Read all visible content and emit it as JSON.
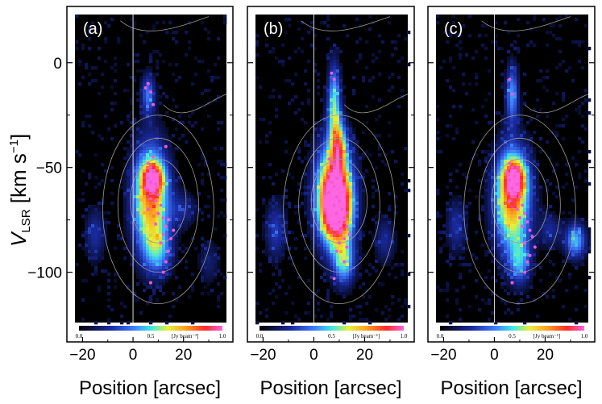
{
  "figure": {
    "ylabel_main": "V",
    "ylabel_sub": "LSR",
    "ylabel_unit": " [km s",
    "ylabel_exp": "−1",
    "ylabel_close": "]",
    "xlabel": "Position [arcsec]",
    "yticks": [
      "0",
      "−50",
      "−100"
    ],
    "xticks": [
      "−20",
      "0",
      "20"
    ]
  },
  "chart_data": [
    {
      "type": "heatmap",
      "panel_label": "(a)",
      "xlabel": "Position [arcsec]",
      "ylabel": "V_LSR [km s^-1]",
      "xlim": [
        -23,
        37
      ],
      "ylim": [
        -124,
        23
      ],
      "colorbar": {
        "min": 0.0,
        "max": 1.0,
        "ticks": [
          "0.0",
          "0.5",
          "1.0"
        ],
        "unit": "[Jy beam⁻¹]"
      },
      "blobs": [
        {
          "x": 7,
          "y": -65,
          "rx": 5,
          "ry": 18,
          "peak": 0.78
        },
        {
          "x": 8,
          "y": -55,
          "rx": 3,
          "ry": 5,
          "peak": 0.55
        },
        {
          "x": 6,
          "y": -15,
          "rx": 2,
          "ry": 7,
          "peak": 0.35
        },
        {
          "x": 10,
          "y": -90,
          "rx": 4,
          "ry": 8,
          "peak": 0.3
        },
        {
          "x": -15,
          "y": -82,
          "rx": 3,
          "ry": 9,
          "peak": 0.22
        },
        {
          "x": 20,
          "y": -70,
          "rx": 4,
          "ry": 6,
          "peak": 0.18
        },
        {
          "x": 30,
          "y": -95,
          "rx": 3,
          "ry": 8,
          "peak": 0.15
        }
      ],
      "points": [
        [
          6,
          -10
        ],
        [
          5,
          -12
        ],
        [
          7,
          -14
        ],
        [
          8,
          -20
        ],
        [
          6,
          -48
        ],
        [
          7,
          -50
        ],
        [
          8,
          -52
        ],
        [
          6,
          -55
        ],
        [
          7,
          -57
        ],
        [
          9,
          -58
        ],
        [
          5,
          -60
        ],
        [
          8,
          -62
        ],
        [
          10,
          -63
        ],
        [
          7,
          -65
        ],
        [
          9,
          -66
        ],
        [
          11,
          -68
        ],
        [
          6,
          -70
        ],
        [
          10,
          -72
        ],
        [
          12,
          -74
        ],
        [
          14,
          -75
        ],
        [
          9,
          -77
        ],
        [
          13,
          -78
        ],
        [
          16,
          -80
        ],
        [
          12,
          -82
        ],
        [
          15,
          -84
        ],
        [
          11,
          -86
        ],
        [
          14,
          -90
        ],
        [
          13,
          -95
        ],
        [
          12,
          -100
        ],
        [
          7,
          -105
        ],
        [
          13,
          -40
        ],
        [
          8,
          -45
        ]
      ]
    },
    {
      "type": "heatmap",
      "panel_label": "(b)",
      "xlabel": "Position [arcsec]",
      "ylabel": "V_LSR [km s^-1]",
      "xlim": [
        -23,
        37
      ],
      "ylim": [
        -124,
        23
      ],
      "colorbar": {
        "min": 0.0,
        "max": 1.0,
        "ticks": [
          "0.0",
          "0.5",
          "1.0"
        ],
        "unit": "[Jy beam⁻¹]"
      },
      "blobs": [
        {
          "x": 8,
          "y": -62,
          "rx": 5,
          "ry": 17,
          "peak": 0.92
        },
        {
          "x": 9,
          "y": -70,
          "rx": 4,
          "ry": 10,
          "peak": 0.7
        },
        {
          "x": 8,
          "y": -20,
          "rx": 1.8,
          "ry": 14,
          "peak": 0.5
        },
        {
          "x": 10,
          "y": -40,
          "rx": 2,
          "ry": 8,
          "peak": 0.45
        },
        {
          "x": 12,
          "y": -95,
          "rx": 3,
          "ry": 8,
          "peak": 0.45
        },
        {
          "x": -15,
          "y": -80,
          "rx": 3,
          "ry": 10,
          "peak": 0.25
        },
        {
          "x": 28,
          "y": -85,
          "rx": 3,
          "ry": 8,
          "peak": 0.2
        }
      ],
      "points": [
        [
          7,
          -5
        ],
        [
          8,
          -8
        ],
        [
          6,
          -46
        ],
        [
          7,
          -48
        ],
        [
          8,
          -50
        ],
        [
          6,
          -53
        ],
        [
          9,
          -55
        ],
        [
          7,
          -57
        ],
        [
          8,
          -59
        ],
        [
          6,
          -62
        ],
        [
          9,
          -64
        ],
        [
          10,
          -66
        ],
        [
          8,
          -68
        ],
        [
          11,
          -70
        ],
        [
          9,
          -72
        ],
        [
          12,
          -74
        ],
        [
          10,
          -76
        ],
        [
          13,
          -78
        ],
        [
          11,
          -80
        ],
        [
          14,
          -82
        ],
        [
          12,
          -84
        ],
        [
          10,
          -86
        ],
        [
          13,
          -88
        ],
        [
          9,
          -90
        ],
        [
          12,
          -95
        ],
        [
          8,
          -103
        ]
      ]
    },
    {
      "type": "heatmap",
      "panel_label": "(c)",
      "xlabel": "Position [arcsec]",
      "ylabel": "V_LSR [km s^-1]",
      "xlim": [
        -23,
        37
      ],
      "ylim": [
        -124,
        23
      ],
      "colorbar": {
        "min": 0.0,
        "max": 1.0,
        "ticks": [
          "0.0",
          "0.5",
          "1.0"
        ],
        "unit": "[Jy beam⁻¹]"
      },
      "blobs": [
        {
          "x": 7,
          "y": -65,
          "rx": 5,
          "ry": 17,
          "peak": 0.8
        },
        {
          "x": 8,
          "y": -55,
          "rx": 3,
          "ry": 6,
          "peak": 0.55
        },
        {
          "x": 7,
          "y": -15,
          "rx": 1.8,
          "ry": 10,
          "peak": 0.4
        },
        {
          "x": 10,
          "y": -95,
          "rx": 3,
          "ry": 8,
          "peak": 0.35
        },
        {
          "x": 32,
          "y": -85,
          "rx": 3,
          "ry": 6,
          "peak": 0.45
        },
        {
          "x": -15,
          "y": -78,
          "rx": 3,
          "ry": 9,
          "peak": 0.22
        },
        {
          "x": 22,
          "y": -80,
          "rx": 3,
          "ry": 6,
          "peak": 0.2
        }
      ],
      "points": [
        [
          6,
          -8
        ],
        [
          7,
          -15
        ],
        [
          6,
          -48
        ],
        [
          7,
          -50
        ],
        [
          5,
          -52
        ],
        [
          8,
          -54
        ],
        [
          6,
          -56
        ],
        [
          9,
          -58
        ],
        [
          7,
          -60
        ],
        [
          8,
          -62
        ],
        [
          10,
          -64
        ],
        [
          6,
          -66
        ],
        [
          11,
          -68
        ],
        [
          9,
          -70
        ],
        [
          12,
          -72
        ],
        [
          10,
          -74
        ],
        [
          13,
          -76
        ],
        [
          11,
          -78
        ],
        [
          14,
          -80
        ],
        [
          15,
          -83
        ],
        [
          12,
          -86
        ],
        [
          16,
          -88
        ],
        [
          14,
          -92
        ],
        [
          13,
          -95
        ],
        [
          12,
          -100
        ],
        [
          7,
          -105
        ]
      ]
    }
  ]
}
